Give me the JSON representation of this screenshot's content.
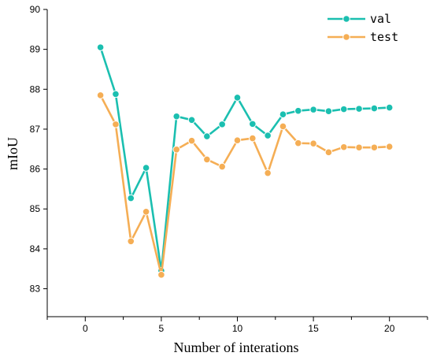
{
  "chart_data": {
    "type": "line",
    "title": "",
    "xlabel": "Number of interations",
    "ylabel": "mIoU",
    "xlim": [
      -2.5,
      22.5
    ],
    "ylim": [
      82.3,
      90
    ],
    "xticks": [
      0,
      5,
      10,
      15,
      20
    ],
    "xticks_minor": [
      -2.5,
      2.5,
      7.5,
      12.5,
      17.5,
      22.5
    ],
    "yticks": [
      83,
      84,
      85,
      86,
      87,
      88,
      89,
      90
    ],
    "grid": false,
    "legend_position": "top-right",
    "x": [
      1,
      2,
      3,
      4,
      5,
      6,
      7,
      8,
      9,
      10,
      11,
      12,
      13,
      14,
      15,
      16,
      17,
      18,
      19,
      20
    ],
    "series": [
      {
        "name": "val",
        "color": "#1bbfb0",
        "values": [
          89.05,
          87.88,
          85.27,
          86.03,
          83.45,
          87.32,
          87.23,
          86.82,
          87.12,
          87.79,
          87.13,
          86.84,
          87.37,
          87.46,
          87.49,
          87.45,
          87.5,
          87.51,
          87.52,
          87.54
        ]
      },
      {
        "name": "test",
        "color": "#f5ae55",
        "values": [
          87.85,
          87.12,
          84.19,
          84.93,
          83.35,
          86.49,
          86.71,
          86.24,
          86.06,
          86.72,
          86.77,
          85.9,
          87.07,
          86.65,
          86.64,
          86.42,
          86.55,
          86.54,
          86.54,
          86.56
        ]
      }
    ]
  }
}
